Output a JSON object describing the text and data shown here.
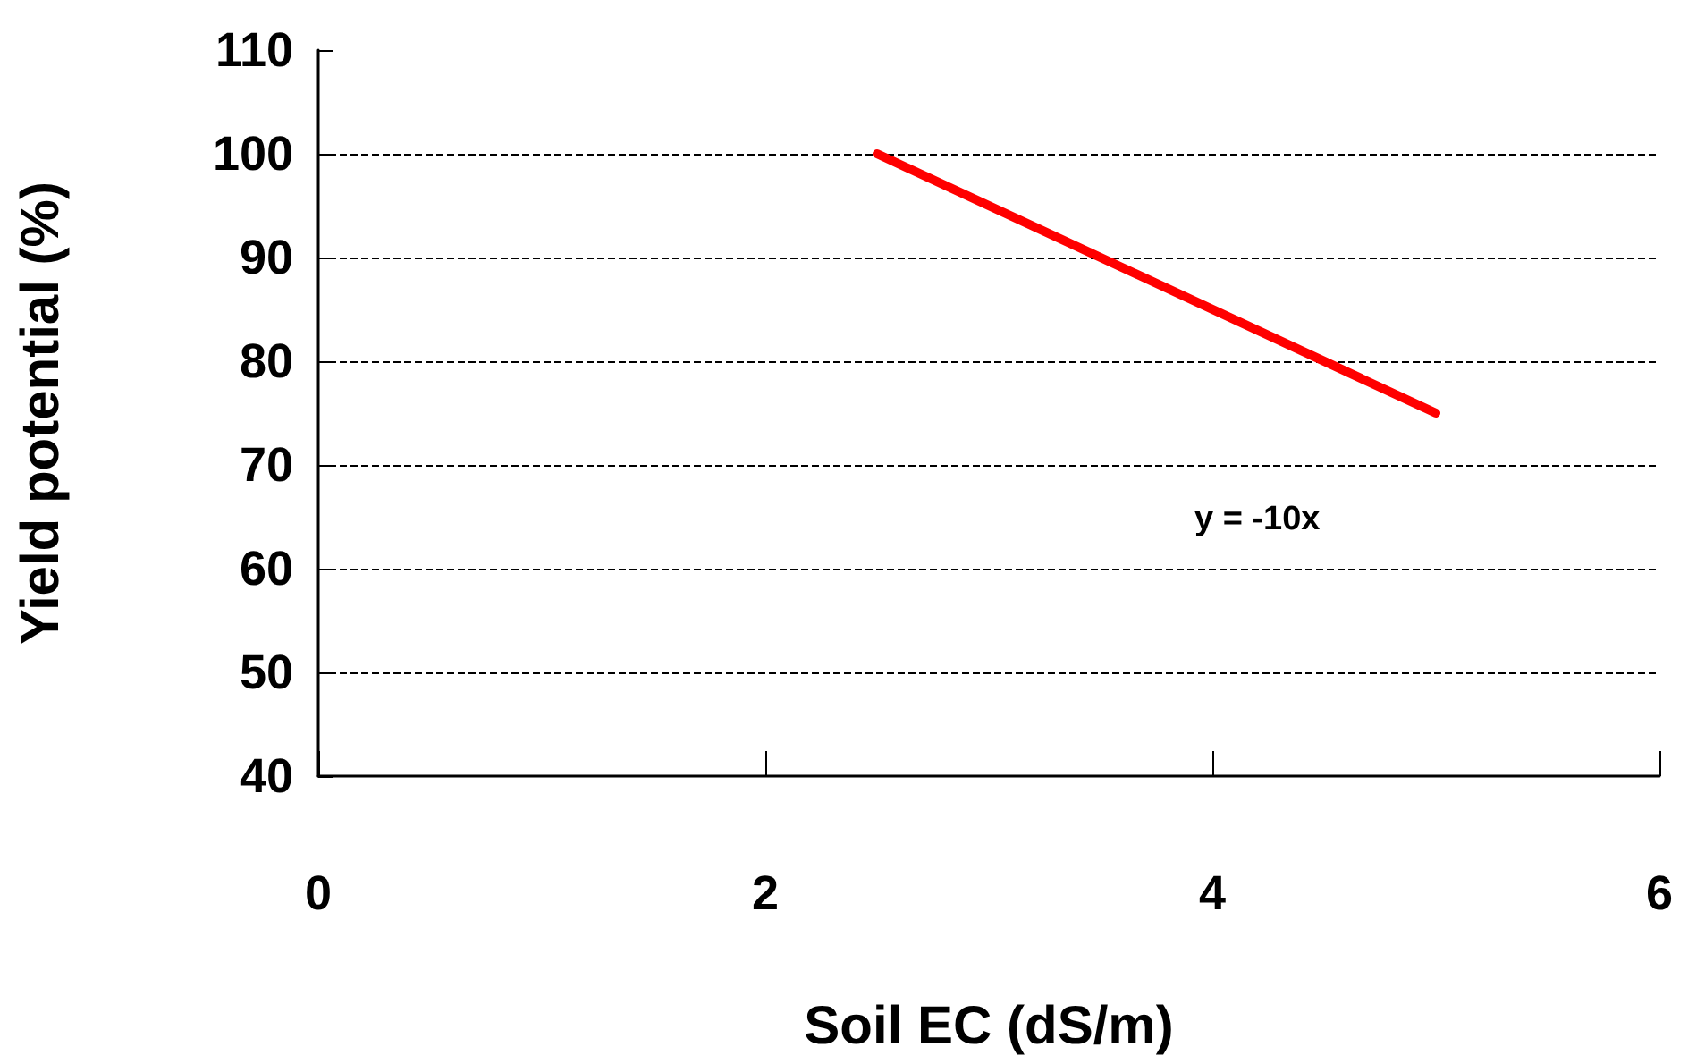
{
  "chart_data": {
    "type": "line",
    "xlabel": "Soil EC (dS/m)",
    "ylabel": "Yield potential (%)",
    "x": [
      2.5,
      5
    ],
    "series": [
      {
        "color": "#ff0000",
        "values": [
          100,
          75
        ]
      }
    ],
    "xlim": [
      0,
      6
    ],
    "xticks": [
      0,
      2,
      4,
      6
    ],
    "ylim": [
      40,
      110
    ],
    "yticks": [
      40,
      50,
      60,
      70,
      80,
      90,
      100,
      110
    ],
    "grid": "y",
    "marker": "none",
    "line_style": "solid",
    "annotations": [
      "y = -10x"
    ]
  }
}
